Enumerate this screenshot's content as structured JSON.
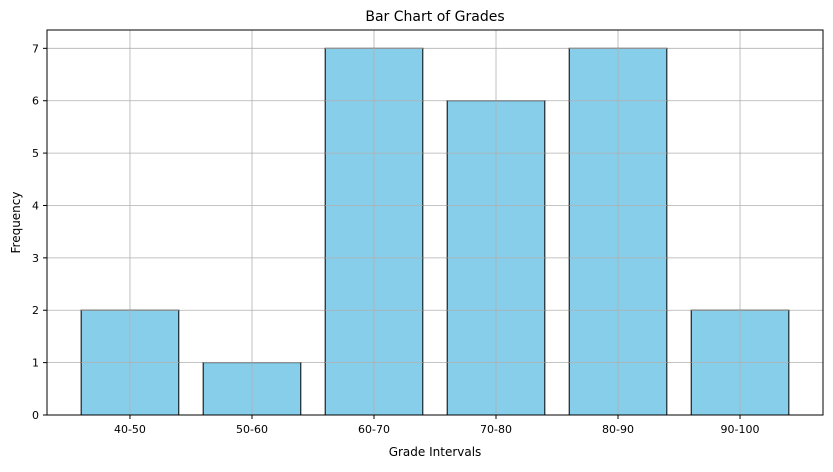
{
  "chart_data": {
    "type": "bar",
    "title": "Bar Chart of Grades",
    "xlabel": "Grade Intervals",
    "ylabel": "Frequency",
    "categories": [
      "40-50",
      "50-60",
      "60-70",
      "70-80",
      "80-90",
      "90-100"
    ],
    "values": [
      2,
      1,
      7,
      6,
      7,
      2
    ],
    "ylim": [
      0,
      7.35
    ],
    "yticks": [
      0,
      1,
      2,
      3,
      4,
      5,
      6,
      7
    ],
    "grid": true,
    "legend": "none",
    "colors": {
      "bar_fill": "#87CEEB",
      "bar_edge": "#000000",
      "grid": "#b0b0b0",
      "axes": "#000000"
    }
  }
}
